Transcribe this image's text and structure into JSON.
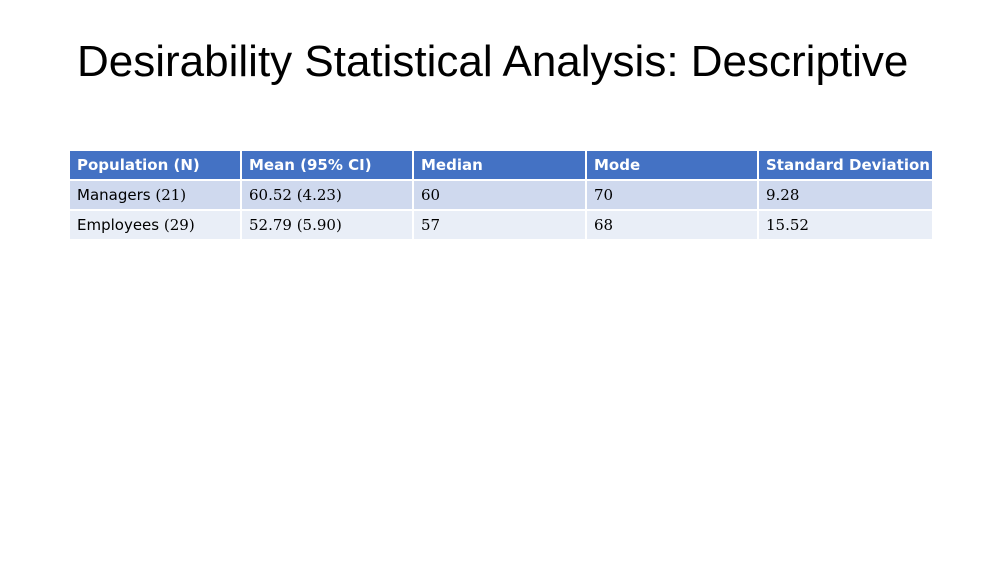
{
  "slide": {
    "title": "Desirability Statistical Analysis: Descriptive"
  },
  "table": {
    "headers": [
      "Population (N)",
      "Mean (95% CI)",
      "Median",
      "Mode",
      "Standard Deviation"
    ],
    "rows": [
      {
        "label": "Managers",
        "n": "(21)",
        "mean": "60.52 (4.23)",
        "median": "60",
        "mode": "70",
        "sd": "9.28"
      },
      {
        "label": "Employees",
        "n": "(29)",
        "mean": "52.79 (5.90)",
        "median": "57",
        "mode": "68",
        "sd": "15.52"
      }
    ]
  },
  "colors": {
    "header_bg": "#4472c4",
    "row_odd_bg": "#cfd9ee",
    "row_even_bg": "#e9eef7"
  }
}
